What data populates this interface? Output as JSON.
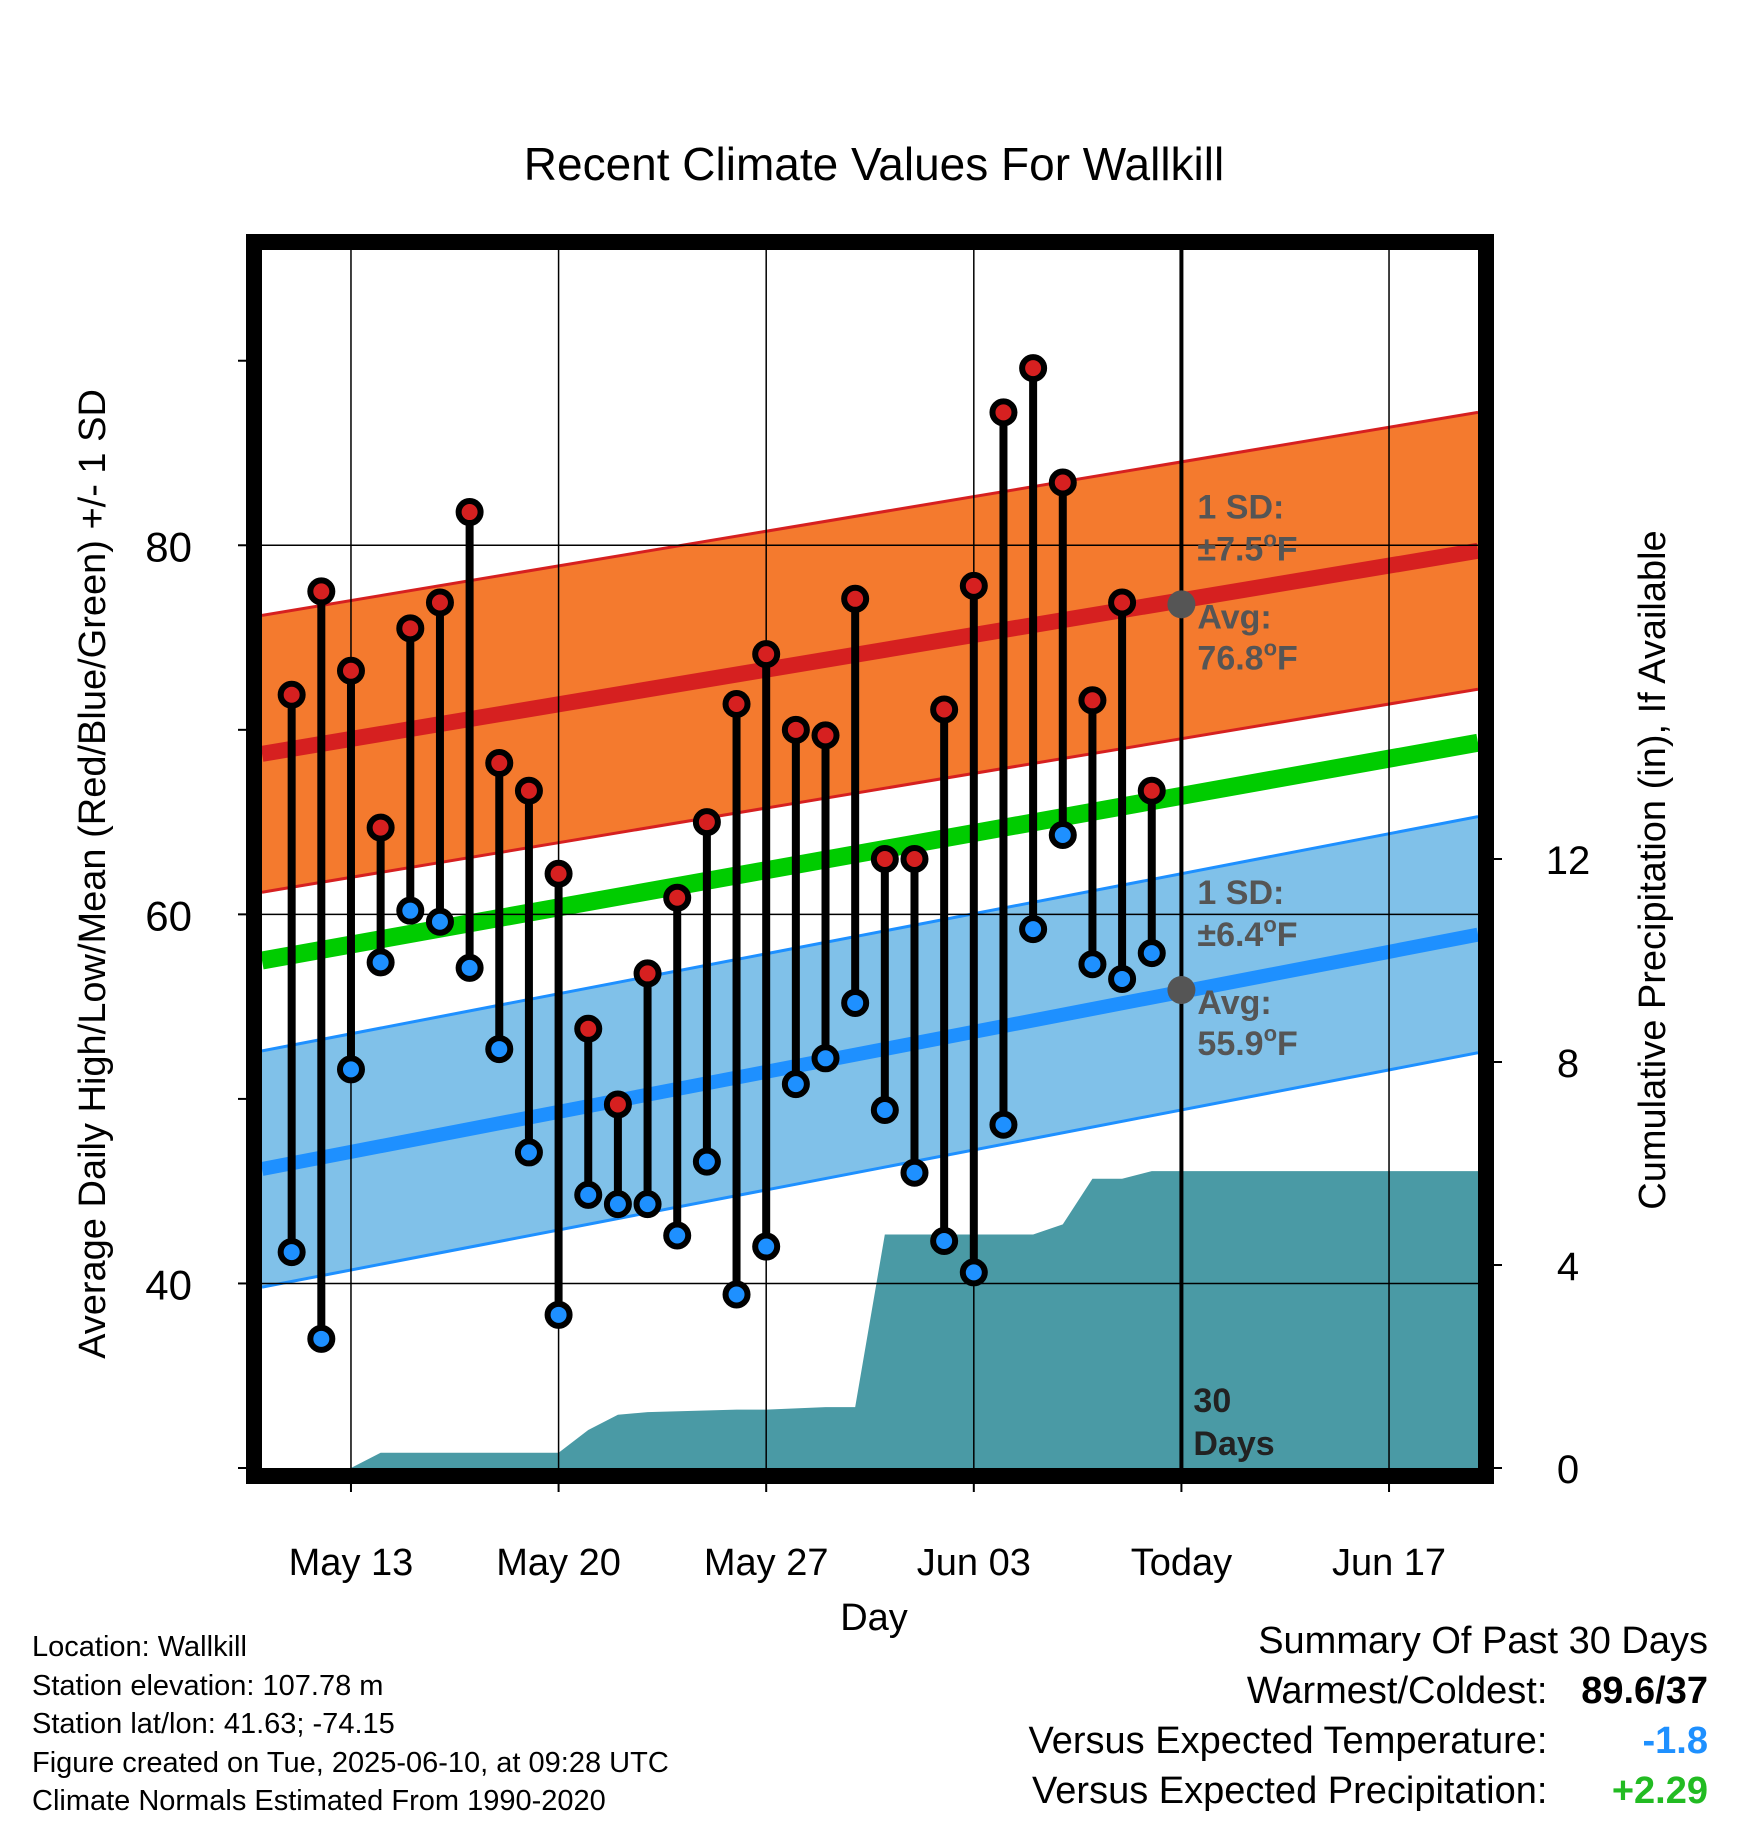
{
  "chart_data": {
    "type": "line",
    "title": "Recent Climate Values For Wallkill",
    "xlabel": "Day",
    "ylabel": "Average Daily High/Low/Mean (Red/Blue/Green) +/- 1 SD",
    "y2label": "Cumulative Precipitation (in), If Available",
    "ylim": [
      30,
      96
    ],
    "y2lim": [
      0,
      24
    ],
    "yticks": [
      40,
      60,
      80
    ],
    "y2ticks": [
      0,
      4,
      8,
      12
    ],
    "x_tick_labels": [
      "May 13",
      "May 20",
      "May 27",
      "Jun 03",
      "Today",
      "Jun 17"
    ],
    "x_range_days": {
      "start": "May 10",
      "end": "Jun 20"
    },
    "days": [
      "May 11",
      "May 12",
      "May 13",
      "May 14",
      "May 15",
      "May 16",
      "May 17",
      "May 18",
      "May 19",
      "May 20",
      "May 21",
      "May 22",
      "May 23",
      "May 24",
      "May 25",
      "May 26",
      "May 27",
      "May 28",
      "May 29",
      "May 30",
      "May 31",
      "Jun 01",
      "Jun 02",
      "Jun 03",
      "Jun 04",
      "Jun 05",
      "Jun 06",
      "Jun 07",
      "Jun 08",
      "Jun 09"
    ],
    "series": [
      {
        "name": "High",
        "color": "#d62020",
        "values": [
          71.9,
          77.5,
          73.2,
          64.7,
          75.5,
          76.9,
          81.8,
          68.2,
          66.7,
          62.2,
          53.8,
          49.7,
          56.8,
          60.9,
          65.0,
          71.4,
          74.1,
          70.0,
          69.7,
          77.1,
          63.0,
          63.0,
          71.1,
          77.8,
          87.2,
          89.6,
          83.4,
          71.6,
          76.9,
          66.7
        ]
      },
      {
        "name": "Low",
        "color": "#1e90ff",
        "values": [
          41.7,
          37.0,
          51.6,
          57.4,
          60.2,
          59.6,
          57.1,
          52.7,
          47.1,
          38.3,
          44.8,
          44.3,
          44.3,
          42.6,
          46.6,
          39.4,
          42.0,
          50.8,
          52.2,
          55.2,
          49.4,
          46.0,
          42.3,
          40.6,
          48.6,
          59.2,
          64.3,
          57.3,
          56.5,
          57.9
        ]
      }
    ],
    "normal_high": {
      "start": 68.7,
      "end": 79.7,
      "sd": "±7.5°F",
      "avg_today": "76.8°F",
      "avg_value": 76.8,
      "color": "#d62020",
      "band_color": "#f47a2e"
    },
    "normal_low": {
      "start": 46.2,
      "end": 58.9,
      "sd": "±6.4°F",
      "avg_today": "55.9°F",
      "avg_value": 55.9,
      "color": "#1e90ff",
      "band_color": "#80c1e9"
    },
    "normal_mean": {
      "start": 57.5,
      "end": 69.3,
      "color": "#00cc00"
    },
    "precip_cumulative": {
      "color": "#4a9aa5",
      "x_days": [
        "May 13",
        "May 14",
        "May 20",
        "May 21",
        "May 22",
        "May 23",
        "May 26",
        "May 27",
        "May 29",
        "May 30",
        "May 31",
        "Jun 01",
        "Jun 05",
        "Jun 06",
        "Jun 07",
        "Jun 08",
        "Jun 09",
        "Jun 20"
      ],
      "values": [
        0,
        0.3,
        0.3,
        0.75,
        1.05,
        1.1,
        1.15,
        1.15,
        1.2,
        1.2,
        4.6,
        4.6,
        4.6,
        4.8,
        5.7,
        5.7,
        5.85,
        5.85
      ]
    },
    "labels": {
      "sd_title": "1 SD:",
      "avg_title": "Avg:",
      "today_line": [
        "30",
        "Days"
      ]
    },
    "grid": true
  },
  "footer": {
    "location": "Location: Wallkill",
    "elevation": "Station elevation: 107.78 m",
    "latlon": "Station lat/lon: 41.63; -74.15",
    "created": "Figure created on Tue, 2025-06-10, at 09:28 UTC",
    "normals": "Climate Normals Estimated From 1990-2020"
  },
  "summary": {
    "title": "Summary Of Past 30 Days",
    "warm_cold_label": "Warmest/Coldest:",
    "warm_cold_value": "89.6/37",
    "temp_label": "Versus Expected Temperature:",
    "temp_value": "-1.8",
    "temp_color": "#1e90ff",
    "precip_label": "Versus Expected Precipitation:",
    "precip_value": "+2.29",
    "precip_color": "#22bb22"
  }
}
